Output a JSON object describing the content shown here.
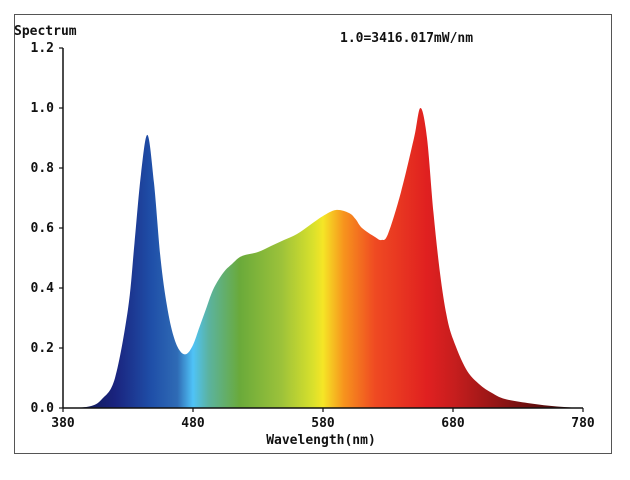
{
  "chart_data": {
    "type": "area",
    "title": "Spectrum",
    "annotation": "1.0=3416.017mW/nm",
    "xlabel": "Wavelength(nm)",
    "ylabel": "",
    "xlim": [
      380,
      780
    ],
    "ylim": [
      0,
      1.2
    ],
    "x_ticks": [
      "380",
      "480",
      "580",
      "680",
      "780"
    ],
    "y_ticks": [
      "0.0",
      "0.2",
      "0.4",
      "0.6",
      "0.8",
      "1.0",
      "1.2"
    ],
    "x_tick_values": [
      380,
      480,
      580,
      680,
      780
    ],
    "y_tick_values": [
      0,
      0.2,
      0.4,
      0.6,
      0.8,
      1.0,
      1.2
    ],
    "grid": false,
    "fill": "spectral-gradient",
    "series": [
      {
        "x": [
          380,
          400,
          410,
          420,
          430,
          435,
          440,
          445,
          450,
          455,
          460,
          465,
          470,
          475,
          480,
          485,
          490,
          495,
          500,
          505,
          510,
          515,
          520,
          530,
          540,
          550,
          560,
          570,
          580,
          590,
          600,
          605,
          610,
          620,
          625,
          630,
          640,
          650,
          655,
          660,
          665,
          670,
          675,
          680,
          690,
          700,
          710,
          720,
          740,
          760,
          780
        ],
        "y": [
          0.0,
          0.005,
          0.03,
          0.1,
          0.33,
          0.55,
          0.78,
          0.91,
          0.75,
          0.5,
          0.34,
          0.24,
          0.19,
          0.18,
          0.21,
          0.27,
          0.33,
          0.39,
          0.43,
          0.46,
          0.48,
          0.5,
          0.51,
          0.52,
          0.54,
          0.56,
          0.58,
          0.61,
          0.64,
          0.66,
          0.65,
          0.63,
          0.6,
          0.57,
          0.56,
          0.58,
          0.72,
          0.9,
          1.0,
          0.9,
          0.65,
          0.45,
          0.31,
          0.23,
          0.13,
          0.08,
          0.05,
          0.03,
          0.015,
          0.005,
          0.0
        ]
      }
    ],
    "colors": {
      "violet": "#1a237e",
      "blue": "#1f4fa8",
      "cyan": "#4fc3f7",
      "green": "#6aaa3a",
      "yellow": "#f5e626",
      "orange": "#f7941d",
      "red": "#e02020",
      "deep_red": "#4a0a0a"
    }
  }
}
